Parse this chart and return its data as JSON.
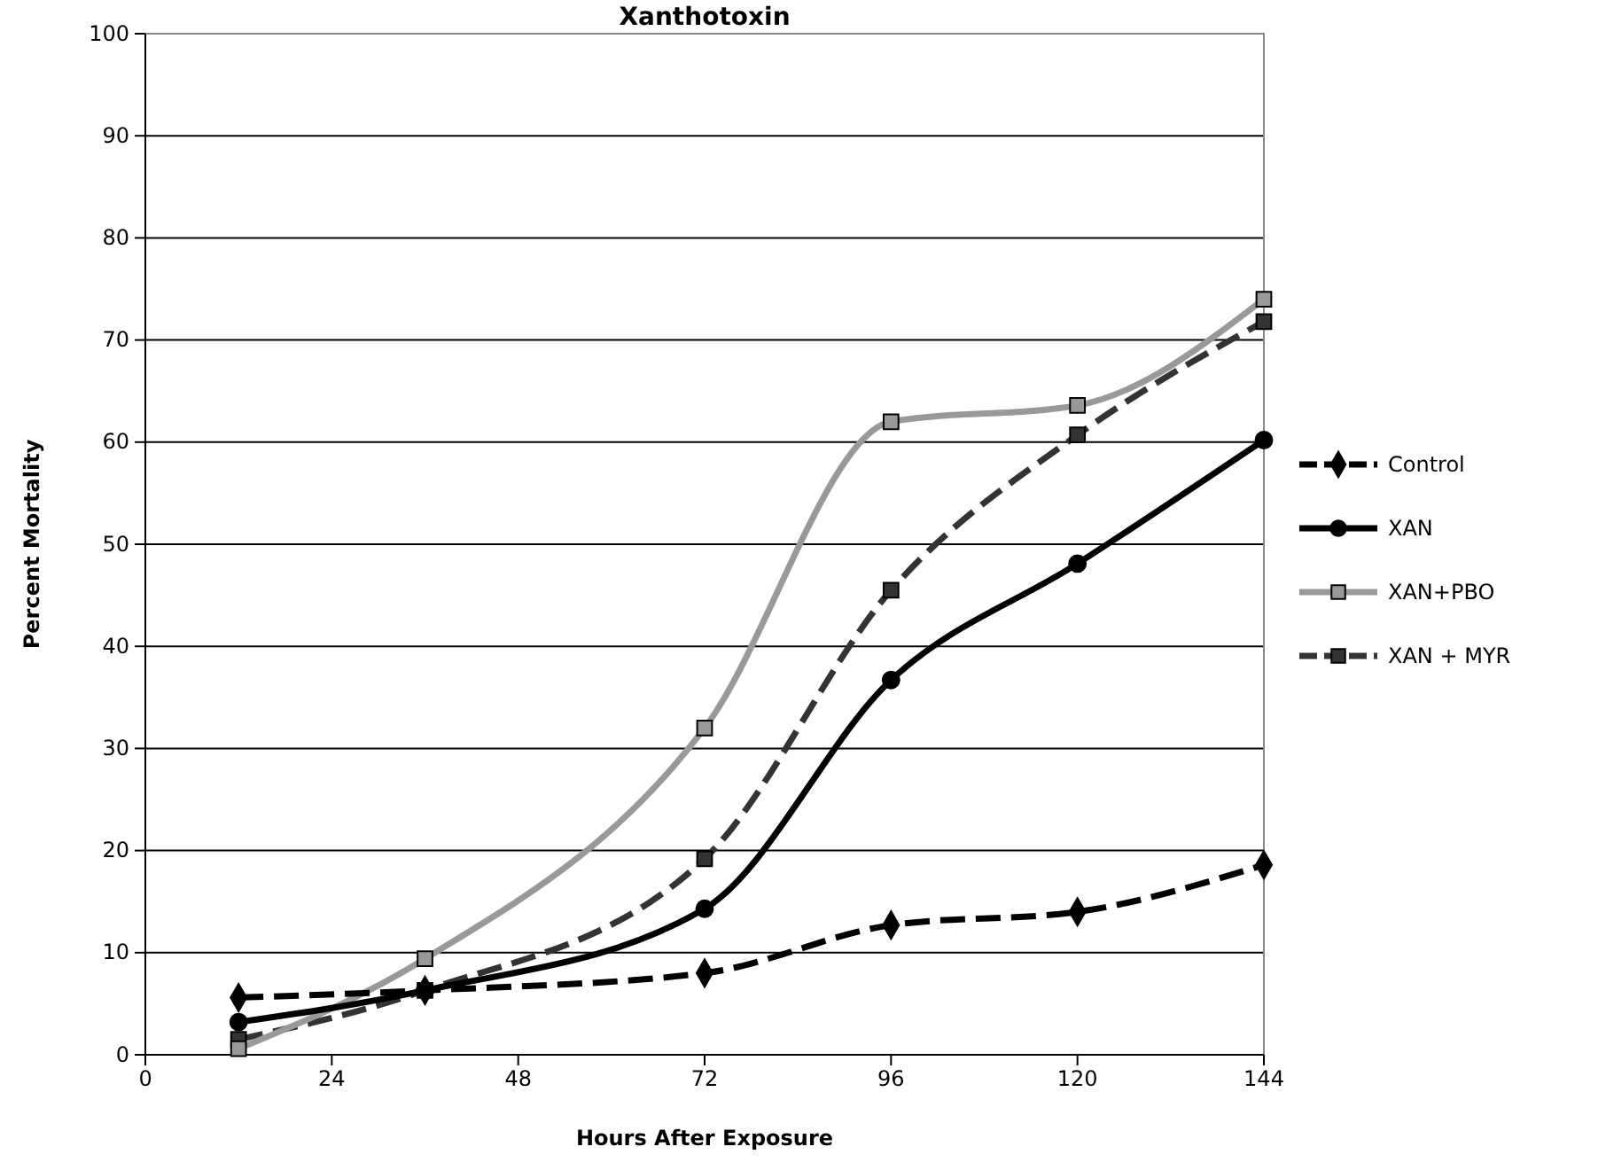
{
  "chart_data": {
    "type": "line",
    "title": "Xanthotoxin",
    "xlabel": "Hours After Exposure",
    "ylabel": "Percent Mortality",
    "x": [
      12,
      36,
      72,
      96,
      120,
      144
    ],
    "xlim": [
      0,
      144
    ],
    "xticks": [
      0,
      24,
      48,
      72,
      96,
      120,
      144
    ],
    "ylim": [
      0,
      100
    ],
    "yticks": [
      0,
      10,
      20,
      30,
      40,
      50,
      60,
      70,
      80,
      90,
      100
    ],
    "grid": "y",
    "legend": "right",
    "series": [
      {
        "name": "Control",
        "color": "#000000",
        "marker": "diamond",
        "line_style": "dashed",
        "values": [
          5.6,
          6.3,
          8.0,
          12.7,
          14.0,
          18.6
        ]
      },
      {
        "name": "XAN",
        "color": "#000000",
        "marker": "circle",
        "line_style": "solid",
        "values": [
          3.2,
          6.3,
          14.3,
          36.7,
          48.1,
          60.2
        ]
      },
      {
        "name": "XAN+PBO",
        "color": "#999999",
        "marker": "square",
        "line_style": "solid",
        "values": [
          0.6,
          9.4,
          32.0,
          62.0,
          63.6,
          74.0
        ]
      },
      {
        "name": "XAN + MYR",
        "color": "#333333",
        "marker": "square",
        "line_style": "dashed",
        "values": [
          1.5,
          6.3,
          19.2,
          45.5,
          60.7,
          71.8
        ]
      }
    ]
  }
}
